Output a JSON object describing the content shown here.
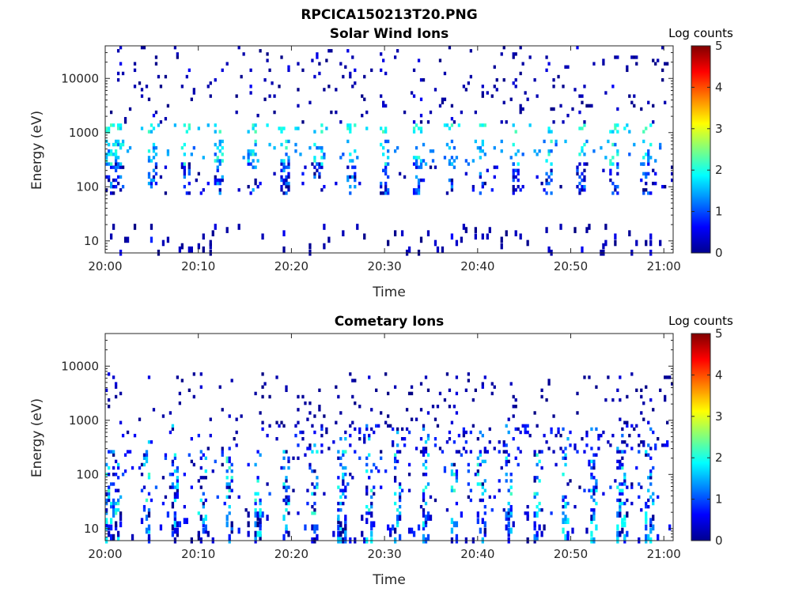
{
  "figure_title": "RPCICA150213T20.PNG",
  "chart_data": [
    {
      "type": "heatmap",
      "title": "Solar Wind Ions",
      "xlabel": "Time",
      "ylabel": "Energy (eV)",
      "x_ticks": [
        "20:00",
        "20:10",
        "20:20",
        "20:30",
        "20:40",
        "20:50",
        "21:00"
      ],
      "x_range_minutes": [
        0,
        61
      ],
      "y_scale": "log",
      "y_ticks": [
        10,
        100,
        1000,
        10000
      ],
      "y_tick_labels": [
        "10",
        "100",
        "1000",
        "10000"
      ],
      "y_range": [
        6,
        40000
      ],
      "colorbar": {
        "label": "Log counts",
        "range": [
          0,
          5
        ],
        "ticks": [
          "0",
          "1",
          "2",
          "3",
          "4",
          "5"
        ],
        "colormap": "jet"
      },
      "bands": [
        {
          "energy_range": [
            6,
            20
          ],
          "log_counts_range": [
            0,
            0.8
          ],
          "pattern": "sparse vertical streaks"
        },
        {
          "energy_range": [
            80,
            250
          ],
          "log_counts_range": [
            0,
            1.5
          ],
          "pattern": "periodic bursts"
        },
        {
          "energy_range": [
            250,
            700
          ],
          "log_counts_range": [
            1,
            2.2
          ],
          "pattern": "periodic bursts ~3.5 min"
        },
        {
          "energy_range": [
            1000,
            1400
          ],
          "log_counts_range": [
            1.5,
            2.3
          ],
          "pattern": "periodic bursts ~3.5 min"
        },
        {
          "energy_range": [
            1500,
            40000
          ],
          "log_counts_range": [
            0,
            0.6
          ],
          "pattern": "sparse scattered dots"
        }
      ]
    },
    {
      "type": "heatmap",
      "title": "Cometary Ions",
      "xlabel": "Time",
      "ylabel": "Energy (eV)",
      "x_ticks": [
        "20:00",
        "20:10",
        "20:20",
        "20:30",
        "20:40",
        "20:50",
        "21:00"
      ],
      "x_range_minutes": [
        0,
        61
      ],
      "y_scale": "log",
      "y_ticks": [
        10,
        100,
        1000,
        10000
      ],
      "y_tick_labels": [
        "10",
        "100",
        "1000",
        "10000"
      ],
      "y_range": [
        6,
        40000
      ],
      "colorbar": {
        "label": "Log counts",
        "range": [
          0,
          5
        ],
        "ticks": [
          "0",
          "1",
          "2",
          "3",
          "4",
          "5"
        ],
        "colormap": "jet"
      },
      "bands": [
        {
          "energy_range": [
            6,
            20
          ],
          "log_counts_range": [
            0,
            2.0
          ],
          "pattern": "periodic vertical streaks"
        },
        {
          "energy_range": [
            20,
            250
          ],
          "log_counts_range": [
            0,
            2.2
          ],
          "pattern": "dense periodic bursts"
        },
        {
          "energy_range": [
            250,
            800
          ],
          "log_counts_range": [
            0,
            1.8
          ],
          "pattern": "scattered, denser after 20:20"
        },
        {
          "energy_range": [
            900,
            7000
          ],
          "log_counts_range": [
            0,
            0.5
          ],
          "pattern": "sparse isolated dots"
        }
      ]
    }
  ]
}
